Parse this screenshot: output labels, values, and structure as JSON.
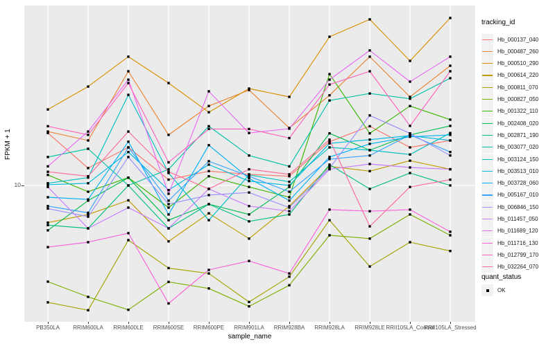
{
  "chart_data": {
    "type": "line",
    "xlabel": "sample_name",
    "ylabel": "FPKM + 1",
    "y_scale": "log10",
    "y_ticks": [
      "10"
    ],
    "grid": "white major gridlines on gray panel",
    "legend_position": "right",
    "categories": [
      "PB350LA",
      "RRIM600LA",
      "RRIM600LE",
      "RRIM600SE",
      "RRIM600PE",
      "RRIM901LA",
      "RRIM928BA",
      "RRIM928LA",
      "RRIM928LE",
      "RRII105LA_Control",
      "RRII105LA_Stressed"
    ],
    "series": [
      {
        "name": "Hb_000137_040",
        "color": "#F8766D",
        "values": [
          20.1,
          12.6,
          16.6,
          10.8,
          12.1,
          11.6,
          11.3,
          17.9,
          22.0,
          16.6,
          18.2
        ]
      },
      {
        "name": "Hb_000487_260",
        "color": "#EA8331",
        "values": [
          20.5,
          18.2,
          45.7,
          19.6,
          28.8,
          35.6,
          21.5,
          33.2,
          55.5,
          32.5,
          49.2
        ]
      },
      {
        "name": "Hb_000510_290",
        "color": "#D89000",
        "values": [
          27.5,
          37.3,
          55.5,
          39.1,
          26.5,
          36.3,
          32.5,
          72.4,
          91.2,
          52.5,
          92.9
        ]
      },
      {
        "name": "Hb_000614_220",
        "color": "#C09B00",
        "values": [
          6.1,
          6.8,
          8.2,
          4.75,
          6.9,
          4.93,
          7.6,
          12.9,
          12.1,
          13.9,
          12.4
        ]
      },
      {
        "name": "Hb_000811_070",
        "color": "#A3A500",
        "values": [
          2.11,
          1.9,
          4.83,
          3.33,
          3.1,
          2.12,
          2.97,
          6.3,
          3.4,
          4.7,
          4.18
        ]
      },
      {
        "name": "Hb_000827_050",
        "color": "#7CAE00",
        "values": [
          2.78,
          2.27,
          1.91,
          2.77,
          2.54,
          2.0,
          2.65,
          5.15,
          4.93,
          6.8,
          5.15
        ]
      },
      {
        "name": "Hb_001322_110",
        "color": "#39B600",
        "values": [
          11.5,
          9.2,
          11.1,
          7.45,
          11.3,
          9.8,
          8.55,
          44.0,
          20.0,
          28.8,
          24.0
        ]
      },
      {
        "name": "Hb_002408_020",
        "color": "#00BB4E",
        "values": [
          5.5,
          8.17,
          11.1,
          6.3,
          7.8,
          6.8,
          9.8,
          20.0,
          16.0,
          19.6,
          22.1
        ]
      },
      {
        "name": "Hb_002871_190",
        "color": "#00BF7D",
        "values": [
          5.9,
          5.65,
          10.0,
          5.65,
          7.8,
          6.2,
          6.8,
          13.2,
          9.55,
          11.8,
          10.0
        ]
      },
      {
        "name": "Hb_003077_020",
        "color": "#00C1A3",
        "values": [
          14.6,
          16.3,
          10.0,
          12.4,
          22.0,
          14.9,
          12.9,
          31.0,
          34.0,
          31.7,
          41.7
        ]
      },
      {
        "name": "Hb_003124_150",
        "color": "#00BFC4",
        "values": [
          10.3,
          11.1,
          33.4,
          11.8,
          6.3,
          11.5,
          10.5,
          16.6,
          16.0,
          15.1,
          20.1
        ]
      },
      {
        "name": "Hb_003513_010",
        "color": "#00BAE0",
        "values": [
          10.1,
          10.3,
          15.6,
          9.4,
          13.2,
          10.6,
          10.0,
          17.5,
          18.4,
          19.4,
          18.2
        ]
      },
      {
        "name": "Hb_003728_060",
        "color": "#00B0F6",
        "values": [
          8.55,
          8.3,
          17.9,
          6.8,
          17.1,
          11.0,
          8.17,
          14.6,
          17.4,
          19.1,
          19.6
        ]
      },
      {
        "name": "Hb_005167_010",
        "color": "#35A2FF",
        "values": [
          7.6,
          6.95,
          16.6,
          8.17,
          13.8,
          11.3,
          9.2,
          14.2,
          14.9,
          19.6,
          15.6
        ]
      },
      {
        "name": "Hb_006846_150",
        "color": "#9590FF",
        "values": [
          7.35,
          6.6,
          14.6,
          7.8,
          8.8,
          9.1,
          7.45,
          12.6,
          25.4,
          20.0,
          14.9
        ]
      },
      {
        "name": "Hb_011457_050",
        "color": "#C77CFF",
        "values": [
          9.8,
          5.65,
          7.45,
          5.65,
          9.55,
          7.6,
          7.1,
          12.4,
          13.3,
          12.7,
          12.4
        ]
      },
      {
        "name": "Hb_011689_120",
        "color": "#E76BF3",
        "values": [
          12.9,
          20.5,
          40.9,
          8.95,
          35.0,
          20.1,
          21.3,
          40.9,
          60.3,
          39.8,
          55.5
        ]
      },
      {
        "name": "Hb_011716_130",
        "color": "#FA62DB",
        "values": [
          4.4,
          4.7,
          5.3,
          2.08,
          3.25,
          3.66,
          3.1,
          7.25,
          7.1,
          7.25,
          5.4
        ]
      },
      {
        "name": "Hb_012799_170",
        "color": "#FF62BC",
        "values": [
          22.0,
          19.6,
          39.1,
          13.6,
          21.2,
          21.2,
          18.8,
          38.3,
          45.7,
          22.1,
          45.7
        ]
      },
      {
        "name": "Hb_032264_070",
        "color": "#FF6A98",
        "values": [
          12.0,
          11.3,
          20.5,
          12.0,
          9.55,
          12.4,
          11.6,
          18.4,
          5.8,
          9.8,
          10.8
        ]
      }
    ],
    "legend": {
      "tracking_title": "tracking_id",
      "quant_title": "quant_status",
      "quant_items": [
        {
          "label": "OK",
          "marker": "black-square"
        }
      ]
    },
    "colors": {
      "panel_bg": "#EBEBEB",
      "gridline": "#FFFFFF",
      "tick_text": "#4D4D4D",
      "marker": "#000000",
      "legend_key_bg": "#F2F2F2"
    }
  }
}
